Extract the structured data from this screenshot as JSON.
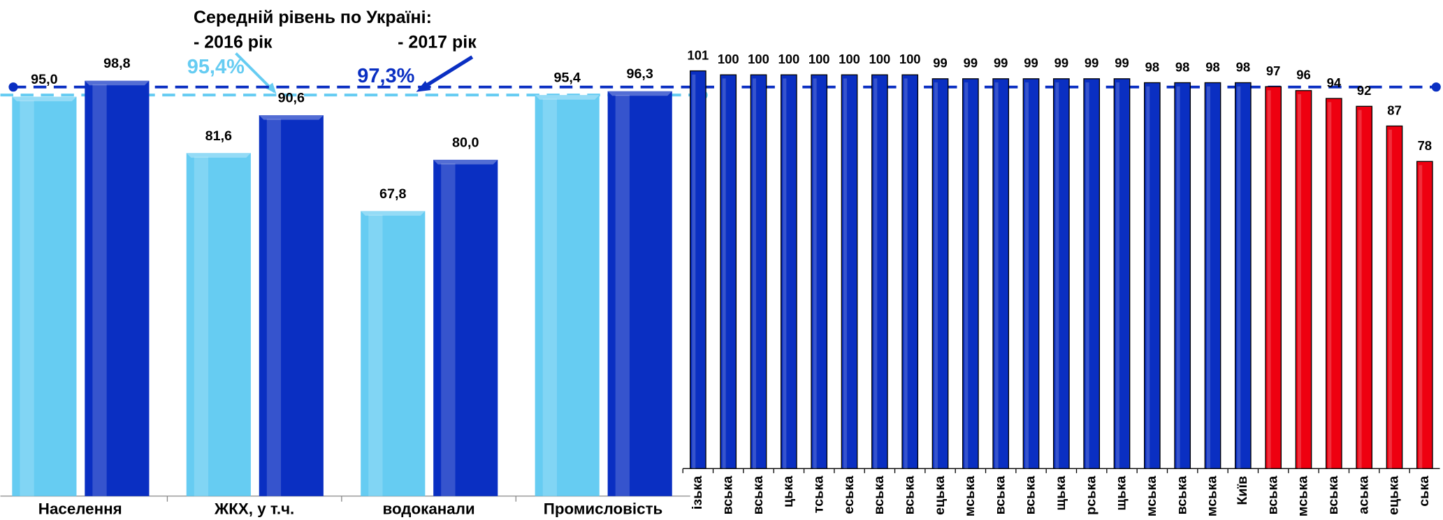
{
  "chart_data": [
    {
      "type": "bar",
      "annotation_title": "Середній рівень по Україні:",
      "categories": [
        "Населення",
        "ЖКХ, у т.ч.",
        "водоканали",
        "Промисловість"
      ],
      "series": [
        {
          "color": "#66ccf2",
          "values": [
            95.0,
            81.6,
            67.8,
            95.4
          ],
          "value_labels": [
            "95,0",
            "81,6",
            "67,8",
            "95,4"
          ]
        },
        {
          "color": "#0a2fc2",
          "values": [
            98.8,
            90.6,
            80.0,
            96.3
          ],
          "value_labels": [
            "98,8",
            "90,6",
            "80,0",
            "96,3"
          ]
        }
      ],
      "reference_lines": [
        {
          "name": "- 2016 рік",
          "value": 95.4,
          "label": "95,4%",
          "color": "#66ccf2"
        },
        {
          "name": "- 2017 рік",
          "value": 97.3,
          "label": "97,3%",
          "color": "#0a2fc2"
        }
      ],
      "ylim": [
        0,
        118
      ]
    },
    {
      "type": "bar",
      "categories": [
        "ізька",
        "вська",
        "вська",
        "цька",
        "тська",
        "еська",
        "вська",
        "вська",
        "ецька",
        "мська",
        "вська",
        "вська",
        "щька",
        "рська",
        "щька",
        "мська",
        "вська",
        "мська",
        "Київ",
        "вська",
        "мська",
        "вська",
        "аська",
        "ецька",
        "ська"
      ],
      "values": [
        101,
        100,
        100,
        100,
        100,
        100,
        100,
        100,
        99,
        99,
        99,
        99,
        99,
        99,
        99,
        98,
        98,
        98,
        98,
        97,
        96,
        94,
        92,
        87,
        78
      ],
      "colors": [
        "#0a2fc2",
        "#0a2fc2",
        "#0a2fc2",
        "#0a2fc2",
        "#0a2fc2",
        "#0a2fc2",
        "#0a2fc2",
        "#0a2fc2",
        "#0a2fc2",
        "#0a2fc2",
        "#0a2fc2",
        "#0a2fc2",
        "#0a2fc2",
        "#0a2fc2",
        "#0a2fc2",
        "#0a2fc2",
        "#0a2fc2",
        "#0a2fc2",
        "#0a2fc2",
        "#ee0010",
        "#ee0010",
        "#ee0010",
        "#ee0010",
        "#ee0010",
        "#ee0010"
      ],
      "ylim": [
        0,
        119
      ]
    }
  ]
}
